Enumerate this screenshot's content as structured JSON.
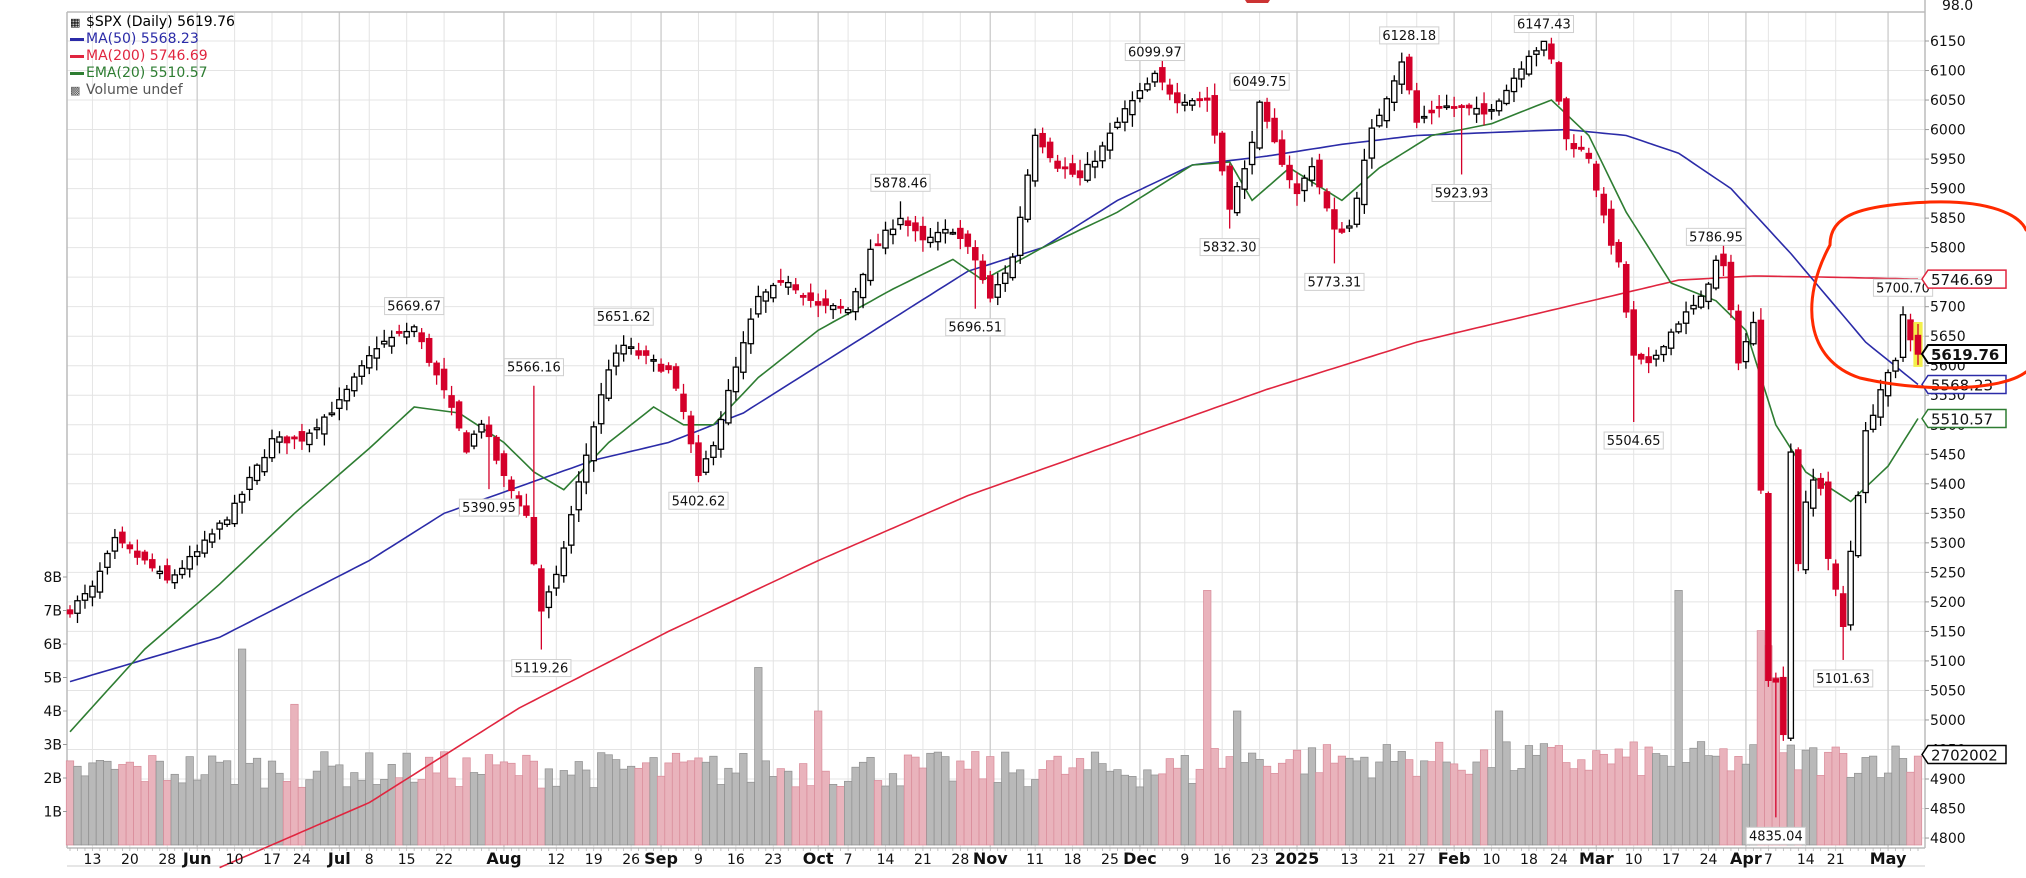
{
  "chart_data": {
    "type": "candlestick",
    "title": "$SPX (Daily) 5619.76",
    "symbol": "$SPX",
    "period": "Daily",
    "last_close": 5619.76,
    "legend": [
      {
        "label": "$SPX (Daily) 5619.76",
        "color": "#000000",
        "icon": "candlestick-icon"
      },
      {
        "label": "MA(50) 5568.23",
        "color": "#2b2ba8",
        "icon": "line-swatch"
      },
      {
        "label": "MA(200) 5746.69",
        "color": "#e0253f",
        "icon": "line-swatch"
      },
      {
        "label": "EMA(20) 5510.57",
        "color": "#2e7d32",
        "icon": "line-swatch"
      },
      {
        "label": "Volume undef",
        "color": "#555555",
        "icon": "volume-bars-icon"
      }
    ],
    "y_axis_right": {
      "ticks": [
        6150,
        6100,
        6050,
        6000,
        5950,
        5900,
        5850,
        5800,
        5750,
        5700,
        5650,
        5600,
        5550,
        5500,
        5450,
        5400,
        5350,
        5300,
        5250,
        5200,
        5150,
        5100,
        5050,
        5000,
        4950,
        4900,
        4850,
        4800
      ],
      "top_label": "98.0",
      "range": [
        4800,
        6150
      ]
    },
    "y_axis_left_volume": {
      "ticks": [
        "1B",
        "2B",
        "3B",
        "4B",
        "5B",
        "6B",
        "7B",
        "8B"
      ]
    },
    "x_axis": {
      "labels": [
        {
          "text": "13",
          "bold": false,
          "idx": 3
        },
        {
          "text": "20",
          "bold": false,
          "idx": 8
        },
        {
          "text": "28",
          "bold": false,
          "idx": 13
        },
        {
          "text": "Jun",
          "bold": true,
          "idx": 17
        },
        {
          "text": "10",
          "bold": false,
          "idx": 22
        },
        {
          "text": "17",
          "bold": false,
          "idx": 27
        },
        {
          "text": "24",
          "bold": false,
          "idx": 31
        },
        {
          "text": "Jul",
          "bold": true,
          "idx": 36
        },
        {
          "text": "8",
          "bold": false,
          "idx": 40
        },
        {
          "text": "15",
          "bold": false,
          "idx": 45
        },
        {
          "text": "22",
          "bold": false,
          "idx": 50
        },
        {
          "text": "Aug",
          "bold": true,
          "idx": 58
        },
        {
          "text": "12",
          "bold": false,
          "idx": 65
        },
        {
          "text": "19",
          "bold": false,
          "idx": 70
        },
        {
          "text": "26",
          "bold": false,
          "idx": 75
        },
        {
          "text": "Sep",
          "bold": true,
          "idx": 79
        },
        {
          "text": "9",
          "bold": false,
          "idx": 84
        },
        {
          "text": "16",
          "bold": false,
          "idx": 89
        },
        {
          "text": "23",
          "bold": false,
          "idx": 94
        },
        {
          "text": "Oct",
          "bold": true,
          "idx": 100
        },
        {
          "text": "7",
          "bold": false,
          "idx": 104
        },
        {
          "text": "14",
          "bold": false,
          "idx": 109
        },
        {
          "text": "21",
          "bold": false,
          "idx": 114
        },
        {
          "text": "28",
          "bold": false,
          "idx": 119
        },
        {
          "text": "Nov",
          "bold": true,
          "idx": 123
        },
        {
          "text": "11",
          "bold": false,
          "idx": 129
        },
        {
          "text": "18",
          "bold": false,
          "idx": 134
        },
        {
          "text": "25",
          "bold": false,
          "idx": 139
        },
        {
          "text": "Dec",
          "bold": true,
          "idx": 143
        },
        {
          "text": "9",
          "bold": false,
          "idx": 149
        },
        {
          "text": "16",
          "bold": false,
          "idx": 154
        },
        {
          "text": "23",
          "bold": false,
          "idx": 159
        },
        {
          "text": "2025",
          "bold": true,
          "idx": 164
        },
        {
          "text": "13",
          "bold": false,
          "idx": 171
        },
        {
          "text": "21",
          "bold": false,
          "idx": 176
        },
        {
          "text": "27",
          "bold": false,
          "idx": 180
        },
        {
          "text": "Feb",
          "bold": true,
          "idx": 185
        },
        {
          "text": "10",
          "bold": false,
          "idx": 190
        },
        {
          "text": "18",
          "bold": false,
          "idx": 195
        },
        {
          "text": "24",
          "bold": false,
          "idx": 199
        },
        {
          "text": "Mar",
          "bold": true,
          "idx": 204
        },
        {
          "text": "10",
          "bold": false,
          "idx": 209
        },
        {
          "text": "17",
          "bold": false,
          "idx": 214
        },
        {
          "text": "24",
          "bold": false,
          "idx": 219
        },
        {
          "text": "Apr",
          "bold": true,
          "idx": 224
        },
        {
          "text": "7",
          "bold": false,
          "idx": 227
        },
        {
          "text": "14",
          "bold": false,
          "idx": 232
        },
        {
          "text": "21",
          "bold": false,
          "idx": 236
        },
        {
          "text": "May",
          "bold": true,
          "idx": 243
        }
      ]
    },
    "price_path_anchors": [
      [
        0,
        5187
      ],
      [
        3,
        5222
      ],
      [
        6,
        5303
      ],
      [
        10,
        5268
      ],
      [
        13,
        5235
      ],
      [
        17,
        5283
      ],
      [
        22,
        5360
      ],
      [
        27,
        5473
      ],
      [
        31,
        5477
      ],
      [
        36,
        5537
      ],
      [
        41,
        5633
      ],
      [
        46,
        5665
      ],
      [
        50,
        5555
      ],
      [
        53,
        5460
      ],
      [
        55,
        5505
      ],
      [
        58,
        5410
      ],
      [
        61,
        5346
      ],
      [
        63,
        5186
      ],
      [
        65,
        5240
      ],
      [
        68,
        5400
      ],
      [
        72,
        5597
      ],
      [
        74,
        5634
      ],
      [
        78,
        5605
      ],
      [
        80,
        5591
      ],
      [
        82,
        5521
      ],
      [
        84,
        5408
      ],
      [
        86,
        5471
      ],
      [
        89,
        5595
      ],
      [
        92,
        5714
      ],
      [
        96,
        5745
      ],
      [
        100,
        5700
      ],
      [
        104,
        5695
      ],
      [
        107,
        5792
      ],
      [
        111,
        5853
      ],
      [
        114,
        5809
      ],
      [
        118,
        5832
      ],
      [
        121,
        5780
      ],
      [
        123,
        5712
      ],
      [
        126,
        5783
      ],
      [
        129,
        5995
      ],
      [
        132,
        5940
      ],
      [
        135,
        5917
      ],
      [
        138,
        5969
      ],
      [
        141,
        6032
      ],
      [
        145,
        6090
      ],
      [
        148,
        6052
      ],
      [
        152,
        6051
      ],
      [
        155,
        5872
      ],
      [
        157,
        5930
      ],
      [
        159,
        6040
      ],
      [
        161,
        5975
      ],
      [
        164,
        5890
      ],
      [
        166,
        5942
      ],
      [
        169,
        5827
      ],
      [
        171,
        5836
      ],
      [
        174,
        5997
      ],
      [
        178,
        6118
      ],
      [
        180,
        6012
      ],
      [
        183,
        6040
      ],
      [
        186,
        6037
      ],
      [
        189,
        6026
      ],
      [
        192,
        6068
      ],
      [
        195,
        6129
      ],
      [
        197,
        6144
      ],
      [
        198,
        6117
      ],
      [
        200,
        5983
      ],
      [
        203,
        5955
      ],
      [
        205,
        5849
      ],
      [
        207,
        5770
      ],
      [
        209,
        5614
      ],
      [
        211,
        5599
      ],
      [
        213,
        5639
      ],
      [
        215,
        5675
      ],
      [
        218,
        5712
      ],
      [
        220,
        5776
      ],
      [
        221,
        5767
      ],
      [
        223,
        5611
      ],
      [
        225,
        5670
      ],
      [
        226,
        5396
      ],
      [
        227,
        5074
      ],
      [
        228,
        5062
      ],
      [
        229,
        4982
      ],
      [
        230,
        5456
      ],
      [
        231,
        5268
      ],
      [
        232,
        5363
      ],
      [
        233,
        5405
      ],
      [
        234,
        5396
      ],
      [
        235,
        5275
      ],
      [
        237,
        5158
      ],
      [
        238,
        5287
      ],
      [
        240,
        5484
      ],
      [
        242,
        5560
      ],
      [
        244,
        5604
      ],
      [
        245,
        5687
      ],
      [
        246,
        5650
      ],
      [
        247,
        5619.76
      ]
    ],
    "ma50_anchors": [
      [
        0,
        5065
      ],
      [
        20,
        5140
      ],
      [
        40,
        5270
      ],
      [
        50,
        5350
      ],
      [
        60,
        5395
      ],
      [
        70,
        5440
      ],
      [
        80,
        5470
      ],
      [
        90,
        5520
      ],
      [
        100,
        5600
      ],
      [
        110,
        5680
      ],
      [
        120,
        5760
      ],
      [
        130,
        5800
      ],
      [
        140,
        5880
      ],
      [
        150,
        5940
      ],
      [
        160,
        5955
      ],
      [
        170,
        5975
      ],
      [
        180,
        5990
      ],
      [
        190,
        5995
      ],
      [
        200,
        6000
      ],
      [
        208,
        5990
      ],
      [
        215,
        5960
      ],
      [
        222,
        5900
      ],
      [
        230,
        5790
      ],
      [
        240,
        5640
      ],
      [
        247,
        5568.23
      ]
    ],
    "ema20_anchors": [
      [
        0,
        4980
      ],
      [
        10,
        5120
      ],
      [
        20,
        5230
      ],
      [
        30,
        5350
      ],
      [
        40,
        5460
      ],
      [
        46,
        5530
      ],
      [
        52,
        5520
      ],
      [
        58,
        5470
      ],
      [
        62,
        5420
      ],
      [
        66,
        5390
      ],
      [
        72,
        5470
      ],
      [
        78,
        5530
      ],
      [
        82,
        5500
      ],
      [
        86,
        5500
      ],
      [
        92,
        5580
      ],
      [
        100,
        5660
      ],
      [
        110,
        5730
      ],
      [
        118,
        5780
      ],
      [
        122,
        5745
      ],
      [
        130,
        5800
      ],
      [
        140,
        5860
      ],
      [
        150,
        5940
      ],
      [
        155,
        5945
      ],
      [
        158,
        5880
      ],
      [
        163,
        5935
      ],
      [
        170,
        5880
      ],
      [
        175,
        5935
      ],
      [
        182,
        5990
      ],
      [
        190,
        6010
      ],
      [
        198,
        6050
      ],
      [
        203,
        5990
      ],
      [
        208,
        5860
      ],
      [
        214,
        5740
      ],
      [
        220,
        5710
      ],
      [
        224,
        5660
      ],
      [
        228,
        5500
      ],
      [
        232,
        5420
      ],
      [
        238,
        5370
      ],
      [
        243,
        5430
      ],
      [
        247,
        5510.57
      ]
    ],
    "ma200_anchors": [
      [
        20,
        4750
      ],
      [
        40,
        4860
      ],
      [
        60,
        5020
      ],
      [
        80,
        5150
      ],
      [
        100,
        5270
      ],
      [
        120,
        5380
      ],
      [
        140,
        5470
      ],
      [
        160,
        5560
      ],
      [
        180,
        5640
      ],
      [
        200,
        5700
      ],
      [
        215,
        5745
      ],
      [
        225,
        5752
      ],
      [
        235,
        5750
      ],
      [
        247,
        5746.69
      ]
    ],
    "annotations": [
      {
        "text": "5669.67",
        "idx": 46,
        "price": 5669.67,
        "pos": "above"
      },
      {
        "text": "5566.16",
        "idx": 62,
        "price": 5566.16,
        "pos": "above"
      },
      {
        "text": "5390.95",
        "idx": 56,
        "price": 5390.95,
        "pos": "below"
      },
      {
        "text": "5119.26",
        "idx": 63,
        "price": 5119.26,
        "pos": "below"
      },
      {
        "text": "5651.62",
        "idx": 74,
        "price": 5651.62,
        "pos": "above"
      },
      {
        "text": "5402.62",
        "idx": 84,
        "price": 5402.62,
        "pos": "below"
      },
      {
        "text": "5878.46",
        "idx": 111,
        "price": 5878.46,
        "pos": "above"
      },
      {
        "text": "5696.51",
        "idx": 121,
        "price": 5696.51,
        "pos": "below"
      },
      {
        "text": "6099.97",
        "idx": 145,
        "price": 6099.97,
        "pos": "above"
      },
      {
        "text": "6049.75",
        "idx": 159,
        "price": 6049.75,
        "pos": "above"
      },
      {
        "text": "5832.30",
        "idx": 155,
        "price": 5832.3,
        "pos": "below"
      },
      {
        "text": "5773.31",
        "idx": 169,
        "price": 5773.31,
        "pos": "below"
      },
      {
        "text": "6128.18",
        "idx": 179,
        "price": 6128.18,
        "pos": "above"
      },
      {
        "text": "5923.93",
        "idx": 186,
        "price": 5923.93,
        "pos": "below"
      },
      {
        "text": "6147.43",
        "idx": 197,
        "price": 6147.43,
        "pos": "above"
      },
      {
        "text": "5786.95",
        "idx": 220,
        "price": 5786.95,
        "pos": "above"
      },
      {
        "text": "5504.65",
        "idx": 209,
        "price": 5504.65,
        "pos": "below"
      },
      {
        "text": "4835.04",
        "idx": 228,
        "price": 4835.04,
        "pos": "below"
      },
      {
        "text": "5101.63",
        "idx": 237,
        "price": 5101.63,
        "pos": "below"
      },
      {
        "text": "5700.70",
        "idx": 245,
        "price": 5700.7,
        "pos": "above"
      }
    ],
    "price_tags": [
      {
        "text": "5746.69",
        "price": 5746.69,
        "color": "#e0253f",
        "bold": false
      },
      {
        "text": "5619.76",
        "price": 5619.76,
        "color": "#000000",
        "bold": true
      },
      {
        "text": "5568.23",
        "price": 5568.23,
        "color": "#2b2ba8",
        "bold": false
      },
      {
        "text": "5510.57",
        "price": 5510.57,
        "color": "#2e7d32",
        "bold": false
      },
      {
        "text": "2702002",
        "volume_b": 2.7,
        "color": "#000000",
        "bold": false
      }
    ],
    "volume_spikes": [
      [
        1,
        2.35
      ],
      [
        23,
        5.85
      ],
      [
        30,
        4.2
      ],
      [
        92,
        5.3
      ],
      [
        100,
        4.0
      ],
      [
        152,
        7.6
      ],
      [
        156,
        4.0
      ],
      [
        191,
        4.0
      ],
      [
        215,
        7.6
      ],
      [
        226,
        6.4
      ],
      [
        227,
        5.95
      ],
      [
        228,
        5.0
      ]
    ],
    "colors": {
      "up": "#000000",
      "down": "#d4002a",
      "ma50": "#2b2ba8",
      "ma200": "#e0253f",
      "ema20": "#2e7d32",
      "volume_up": "#b9b9b9",
      "volume_down": "#e9b3bc",
      "grid": "#e4e4e4",
      "highlight_circle": "#ff2a00",
      "last_bar_highlight": "#f3f04a"
    },
    "bars_count": 248
  }
}
